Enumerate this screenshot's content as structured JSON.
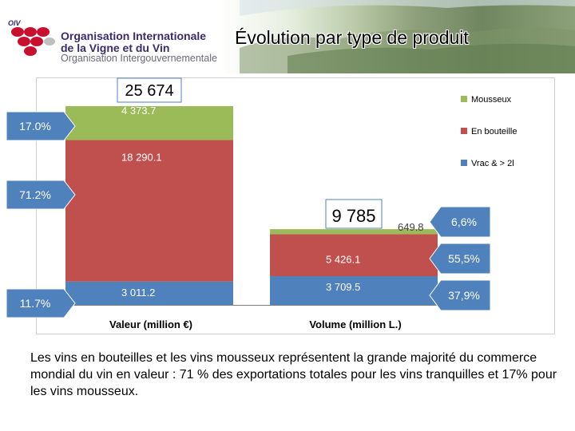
{
  "header": {
    "logo_abbr": "OIV",
    "org_line1": "Organisation Internationale",
    "org_line2": "de la Vigne et du Vin",
    "org_line3": "Organisation Intergouvernementale",
    "title": "Évolution par type de produit"
  },
  "chart_data": {
    "type": "bar",
    "stacked": true,
    "categories": [
      "Valeur (million €)",
      "Volume (million L.)"
    ],
    "series": [
      {
        "name": "Vrac & > 2l",
        "color": "#4f81bd",
        "values": [
          3011.2,
          3709.5
        ],
        "labels": [
          "3 011.2",
          "3 709.5"
        ]
      },
      {
        "name": "En bouteille",
        "color": "#c0504d",
        "values": [
          18290.1,
          5426.1
        ],
        "labels": [
          "18 290.1",
          "5 426.1"
        ]
      },
      {
        "name": "Mousseux",
        "color": "#9bbb59",
        "values": [
          4373.7,
          649.8
        ],
        "labels": [
          "4 373.7",
          "649.8"
        ]
      }
    ],
    "totals": [
      "25 674",
      "9 785"
    ],
    "legend": [
      "Mousseux",
      "En bouteille",
      "Vrac & > 2l"
    ],
    "legend_position": "right",
    "ylim": [
      0,
      25674
    ],
    "share_callouts_value": [
      "17.0%",
      "71.2%",
      "11.7%"
    ],
    "share_callouts_volume": [
      "6,6%",
      "55,5%",
      "37,9%"
    ]
  },
  "caption": "Les vins en bouteilles et les vins mousseux représentent la grande majorité du commerce mondial du vin en valeur : 71 % des exportations totales pour les vins tranquilles et 17% pour les vins mousseux."
}
